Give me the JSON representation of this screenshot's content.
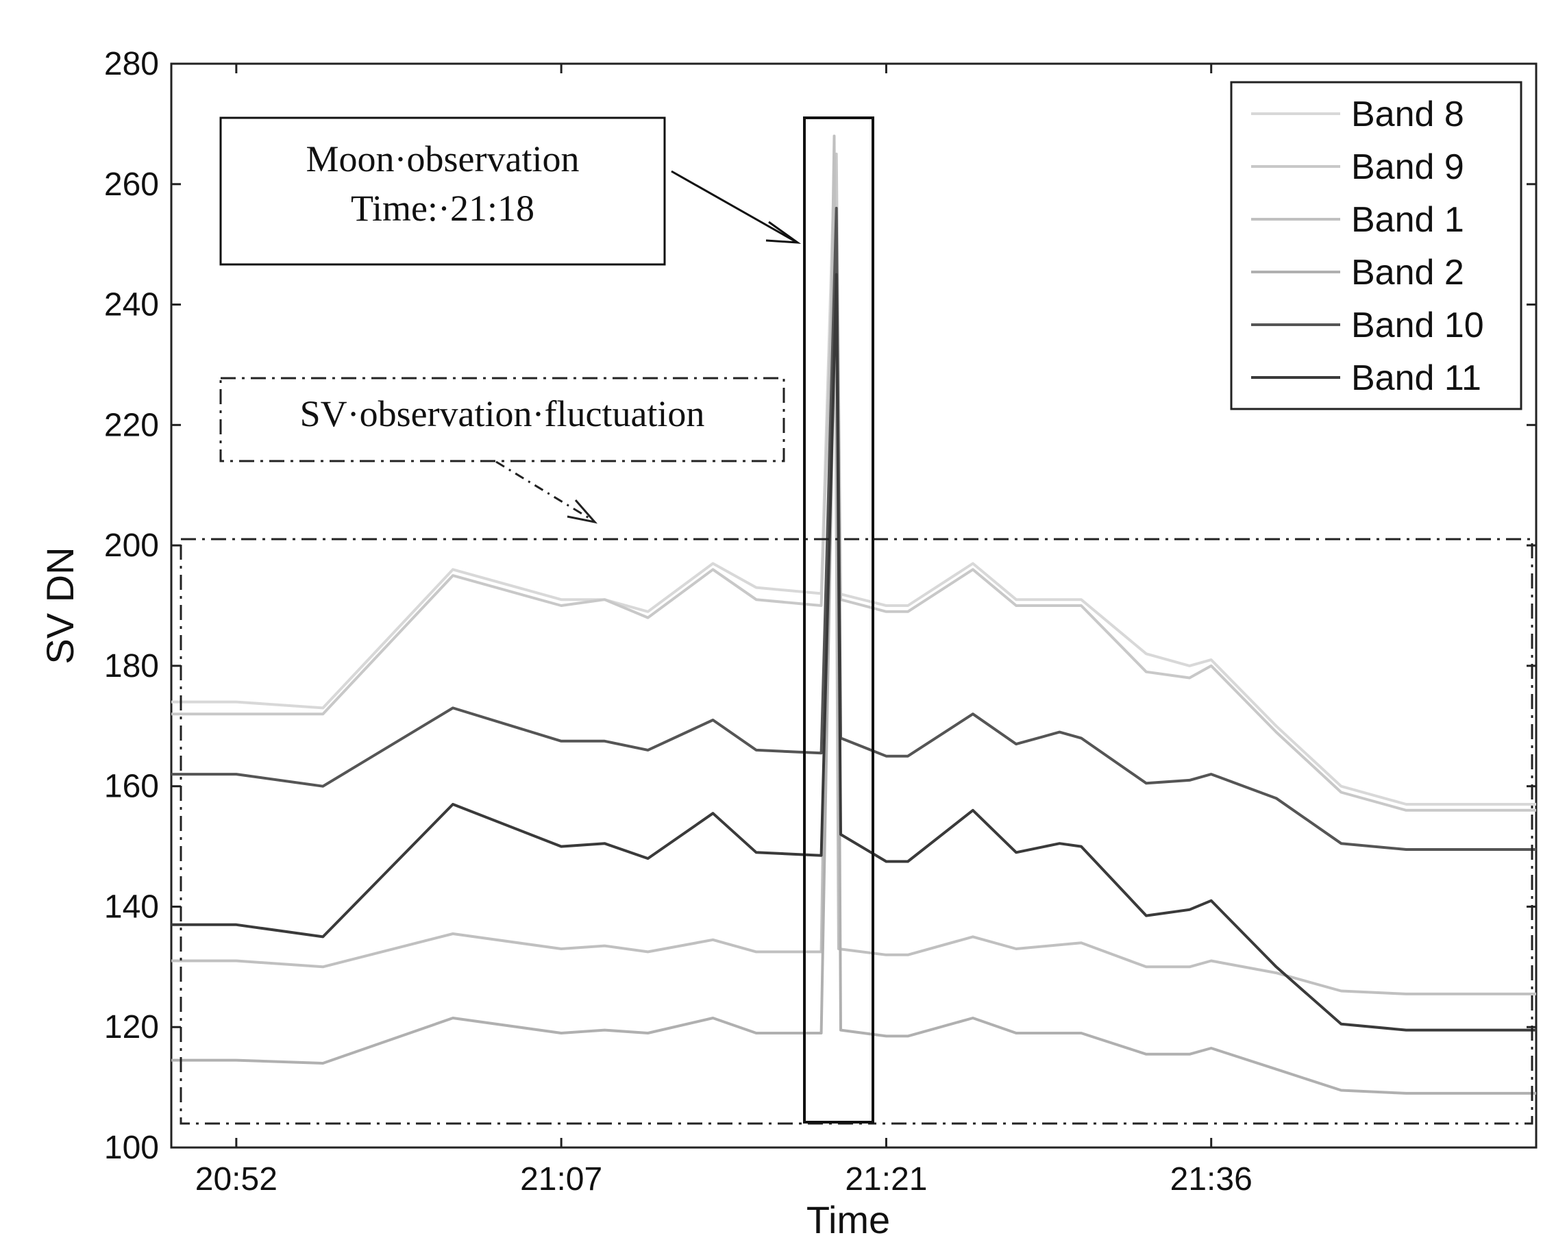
{
  "chart_data": {
    "type": "line",
    "title": "",
    "xlabel": "Time",
    "ylabel": "SV DN",
    "x_ticks": [
      "20:52",
      "21:07",
      "21:21",
      "21:36"
    ],
    "x_tick_minutes": [
      0,
      15,
      30,
      45
    ],
    "xlim_minutes": [
      -3,
      60
    ],
    "ylim": [
      100,
      280
    ],
    "y_ticks": [
      100,
      120,
      140,
      160,
      180,
      200,
      220,
      240,
      260,
      280
    ],
    "grid": false,
    "legend_position": "top-right",
    "moon_peak_minute": 27.7,
    "series": [
      {
        "name": "Band 8",
        "color": "#d8d8d8",
        "points": [
          [
            -3,
            174
          ],
          [
            0,
            174
          ],
          [
            4,
            173
          ],
          [
            10,
            196
          ],
          [
            15,
            191
          ],
          [
            17,
            191
          ],
          [
            19,
            189
          ],
          [
            22,
            197
          ],
          [
            24,
            193
          ],
          [
            27,
            192
          ],
          [
            27.6,
            262
          ],
          [
            27.8,
            192
          ],
          [
            30,
            190
          ],
          [
            31,
            190
          ],
          [
            34,
            197
          ],
          [
            36,
            191
          ],
          [
            39,
            191
          ],
          [
            42,
            182
          ],
          [
            44,
            180
          ],
          [
            45,
            181
          ],
          [
            48,
            170
          ],
          [
            51,
            160
          ],
          [
            54,
            157
          ],
          [
            60,
            157
          ]
        ]
      },
      {
        "name": "Band 9",
        "color": "#c8c8c8",
        "points": [
          [
            -3,
            172
          ],
          [
            0,
            172
          ],
          [
            4,
            172
          ],
          [
            10,
            195
          ],
          [
            15,
            190
          ],
          [
            17,
            191
          ],
          [
            19,
            188
          ],
          [
            22,
            196
          ],
          [
            24,
            191
          ],
          [
            27,
            190
          ],
          [
            27.7,
            265
          ],
          [
            27.9,
            191
          ],
          [
            30,
            189
          ],
          [
            31,
            189
          ],
          [
            34,
            196
          ],
          [
            36,
            190
          ],
          [
            39,
            190
          ],
          [
            42,
            179
          ],
          [
            44,
            178
          ],
          [
            45,
            180
          ],
          [
            48,
            169
          ],
          [
            51,
            159
          ],
          [
            54,
            156
          ],
          [
            60,
            156
          ]
        ]
      },
      {
        "name": "Band 1",
        "color": "#c0c0c0",
        "points": [
          [
            -3,
            131
          ],
          [
            0,
            131
          ],
          [
            4,
            130
          ],
          [
            10,
            135.5
          ],
          [
            15,
            133
          ],
          [
            17,
            133.5
          ],
          [
            19,
            132.5
          ],
          [
            22,
            134.5
          ],
          [
            24,
            132.5
          ],
          [
            27,
            132.5
          ],
          [
            27.6,
            268
          ],
          [
            27.8,
            133
          ],
          [
            30,
            132
          ],
          [
            31,
            132
          ],
          [
            34,
            135
          ],
          [
            36,
            133
          ],
          [
            39,
            134
          ],
          [
            42,
            130
          ],
          [
            44,
            130
          ],
          [
            45,
            131
          ],
          [
            48,
            129
          ],
          [
            51,
            126
          ],
          [
            54,
            125.5
          ],
          [
            60,
            125.5
          ]
        ]
      },
      {
        "name": "Band 2",
        "color": "#b0b0b0",
        "points": [
          [
            -3,
            114.5
          ],
          [
            0,
            114.5
          ],
          [
            4,
            114
          ],
          [
            10,
            121.5
          ],
          [
            15,
            119
          ],
          [
            17,
            119.5
          ],
          [
            19,
            119
          ],
          [
            22,
            121.5
          ],
          [
            24,
            119
          ],
          [
            27,
            119
          ],
          [
            27.7,
            254
          ],
          [
            27.9,
            119.5
          ],
          [
            30,
            118.5
          ],
          [
            31,
            118.5
          ],
          [
            34,
            121.5
          ],
          [
            36,
            119
          ],
          [
            39,
            119
          ],
          [
            42,
            115.5
          ],
          [
            44,
            115.5
          ],
          [
            45,
            116.5
          ],
          [
            48,
            113
          ],
          [
            51,
            109.5
          ],
          [
            54,
            109
          ],
          [
            60,
            109
          ]
        ]
      },
      {
        "name": "Band 10",
        "color": "#555555",
        "points": [
          [
            -3,
            162
          ],
          [
            0,
            162
          ],
          [
            4,
            160
          ],
          [
            10,
            173
          ],
          [
            15,
            167.5
          ],
          [
            17,
            167.5
          ],
          [
            19,
            166
          ],
          [
            22,
            171
          ],
          [
            24,
            166
          ],
          [
            27,
            165.5
          ],
          [
            27.7,
            256
          ],
          [
            27.9,
            168
          ],
          [
            30,
            165
          ],
          [
            31,
            165
          ],
          [
            34,
            172
          ],
          [
            36,
            167
          ],
          [
            38,
            169
          ],
          [
            39,
            168
          ],
          [
            42,
            160.5
          ],
          [
            44,
            161
          ],
          [
            45,
            162
          ],
          [
            48,
            158
          ],
          [
            51,
            150.5
          ],
          [
            54,
            149.5
          ],
          [
            60,
            149.5
          ]
        ]
      },
      {
        "name": "Band 11",
        "color": "#3a3a3a",
        "points": [
          [
            -3,
            137
          ],
          [
            0,
            137
          ],
          [
            4,
            135
          ],
          [
            10,
            157
          ],
          [
            15,
            150
          ],
          [
            17,
            150.5
          ],
          [
            19,
            148
          ],
          [
            22,
            155.5
          ],
          [
            24,
            149
          ],
          [
            27,
            148.5
          ],
          [
            27.7,
            245
          ],
          [
            27.9,
            152
          ],
          [
            30,
            147.5
          ],
          [
            31,
            147.5
          ],
          [
            34,
            156
          ],
          [
            36,
            149
          ],
          [
            38,
            150.5
          ],
          [
            39,
            150
          ],
          [
            42,
            138.5
          ],
          [
            44,
            139.5
          ],
          [
            45,
            141
          ],
          [
            48,
            130
          ],
          [
            51,
            120.5
          ],
          [
            54,
            119.5
          ],
          [
            60,
            119.5
          ]
        ]
      }
    ],
    "annotations": {
      "moon_line1": "Moon·observation",
      "moon_line2": "Time:·21:18",
      "sv_label": "SV·observation·fluctuation"
    }
  }
}
